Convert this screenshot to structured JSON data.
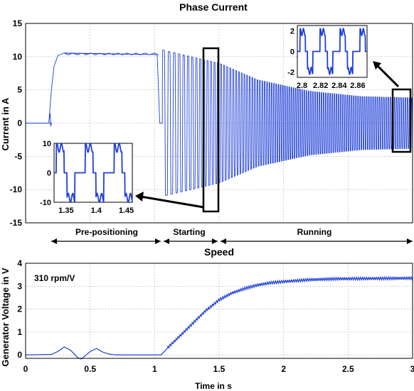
{
  "colors": {
    "trace": "#1f3fd6",
    "axis": "#000000",
    "grid": "#9a9a9a",
    "background": "#ffffff"
  },
  "chart_data": [
    {
      "type": "line",
      "title": "Phase Current",
      "xlabel": "",
      "ylabel": "Current in A",
      "xlim": [
        0,
        3
      ],
      "ylim": [
        -15,
        15
      ],
      "y_ticks": [
        "15",
        "10",
        "5",
        "0",
        "-5",
        "-10",
        "-15"
      ],
      "grid": true,
      "series": [
        {
          "name": "",
          "envelope_segments": [
            {
              "x": [
                0,
                0.18
              ],
              "y": [
                0,
                0
              ]
            },
            {
              "x": [
                0.18,
                0.2,
                0.22,
                0.25,
                0.3,
                1.03
              ],
              "y": [
                0,
                5,
                8.5,
                10,
                10.5,
                10.4
              ]
            },
            {
              "x": [
                1.06,
                1.5,
                1.8,
                2.2,
                2.6,
                3.0
              ],
              "amplitude": [
                11,
                9,
                6.5,
                4.8,
                4,
                3.8
              ]
            }
          ]
        }
      ],
      "phase_annotations": [
        "Pre-positioning",
        "Starting",
        "Running"
      ],
      "insets": [
        {
          "x_ticks": [
            "1.35",
            "1.4",
            "1.45"
          ],
          "y_ticks": [
            "10",
            "0",
            "-10"
          ],
          "xlim": [
            1.33,
            1.46
          ],
          "ylim": [
            -10,
            10
          ]
        },
        {
          "x_ticks": [
            "2.8",
            "2.82",
            "2.84",
            "2.86"
          ],
          "y_ticks": [
            "2",
            "0",
            "-2"
          ],
          "xlim": [
            2.795,
            2.87
          ],
          "ylim": [
            -2.5,
            2.5
          ]
        }
      ]
    },
    {
      "type": "line",
      "title": "Speed",
      "xlabel": "Time in s",
      "ylabel": "Generator Voltage in V",
      "xlim": [
        0,
        3
      ],
      "ylim": [
        -0.15,
        4
      ],
      "x_ticks": [
        "0",
        "0.5",
        "1",
        "1.5",
        "2",
        "2.5",
        "3"
      ],
      "y_ticks": [
        "4",
        "3",
        "2",
        "1",
        "0"
      ],
      "grid": true,
      "annotation": "310 rpm/V",
      "series": [
        {
          "name": "",
          "x": [
            0,
            0.2,
            0.25,
            0.3,
            0.35,
            0.4,
            0.43,
            0.46,
            0.5,
            0.55,
            0.6,
            0.65,
            0.7,
            1.05,
            1.1,
            1.2,
            1.3,
            1.4,
            1.5,
            1.6,
            1.7,
            1.8,
            1.9,
            2.0,
            2.2,
            2.4,
            2.6,
            2.8,
            3.0
          ],
          "y": [
            0,
            0.02,
            0.15,
            0.35,
            0.2,
            -0.1,
            -0.18,
            -0.05,
            0.15,
            0.28,
            0.12,
            0.03,
            0.0,
            0.0,
            0.3,
            0.85,
            1.4,
            1.95,
            2.4,
            2.7,
            2.9,
            3.05,
            3.15,
            3.2,
            3.28,
            3.32,
            3.33,
            3.34,
            3.35
          ]
        }
      ]
    }
  ]
}
